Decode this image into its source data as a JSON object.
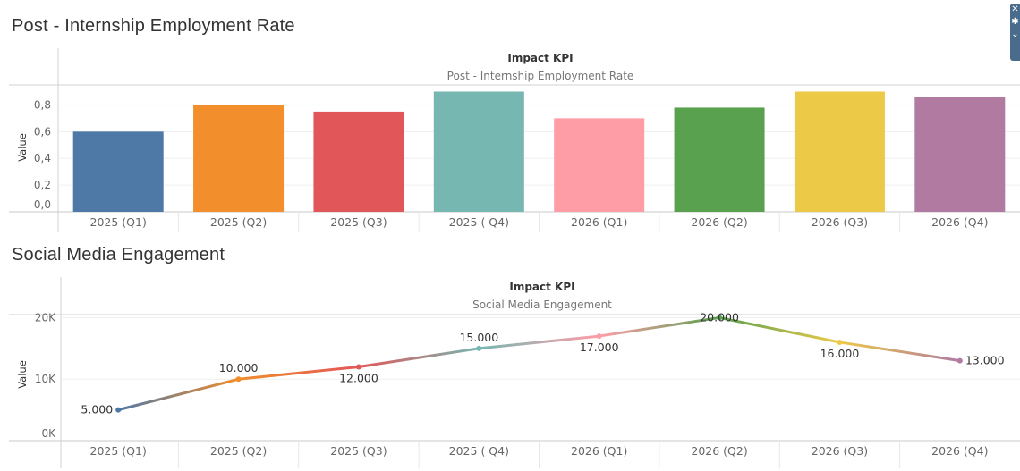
{
  "bar_section": {
    "title": "Post - Internship Employment Rate"
  },
  "line_section": {
    "title": "Social Media Engagement"
  },
  "toolbar": {
    "icons": [
      "close-icon",
      "pin-icon",
      "chevron-icon"
    ],
    "color": "#4a6c8c"
  },
  "chart_data": [
    {
      "type": "bar",
      "title": "Impact KPI",
      "subtitle": "Post - Internship Employment Rate",
      "ylabel": "Value",
      "xlabel": "",
      "categories": [
        "2025 (Q1)",
        "2025 (Q2)",
        "2025 (Q3)",
        "2025 ( Q4)",
        "2026 (Q1)",
        "2026 (Q2)",
        "2026 (Q3)",
        "2026 (Q4)"
      ],
      "values": [
        0.6,
        0.8,
        0.75,
        0.9,
        0.7,
        0.78,
        0.9,
        0.86
      ],
      "colors": [
        "#4e79a7",
        "#f28e2b",
        "#e15759",
        "#76b7b2",
        "#ff9da7",
        "#59a14f",
        "#edc948",
        "#b07aa1"
      ],
      "yticks": [
        "0,0",
        "0,2",
        "0,4",
        "0,6",
        "0,8"
      ],
      "ylim": [
        0,
        0.95
      ],
      "grid": true
    },
    {
      "type": "line",
      "title": "Impact KPI",
      "subtitle": "Social Media Engagement",
      "ylabel": "Value",
      "xlabel": "",
      "categories": [
        "2025 (Q1)",
        "2025 (Q2)",
        "2025 (Q3)",
        "2025 ( Q4)",
        "2026 (Q1)",
        "2026 (Q2)",
        "2026 (Q3)",
        "2026 (Q4)"
      ],
      "values": [
        5000,
        10000,
        12000,
        15000,
        17000,
        20000,
        16000,
        13000
      ],
      "data_labels": [
        "5.000",
        "10.000",
        "12.000",
        "15.000",
        "17.000",
        "20.000",
        "16.000",
        "13.000"
      ],
      "colors": [
        "#4e79a7",
        "#f28e2b",
        "#e15759",
        "#76b7b2",
        "#ff9da7",
        "#59a14f",
        "#edc948",
        "#b07aa1"
      ],
      "yticks": [
        "0K",
        "10K",
        "20K"
      ],
      "ylim": [
        0,
        20500
      ],
      "grid": true
    }
  ]
}
